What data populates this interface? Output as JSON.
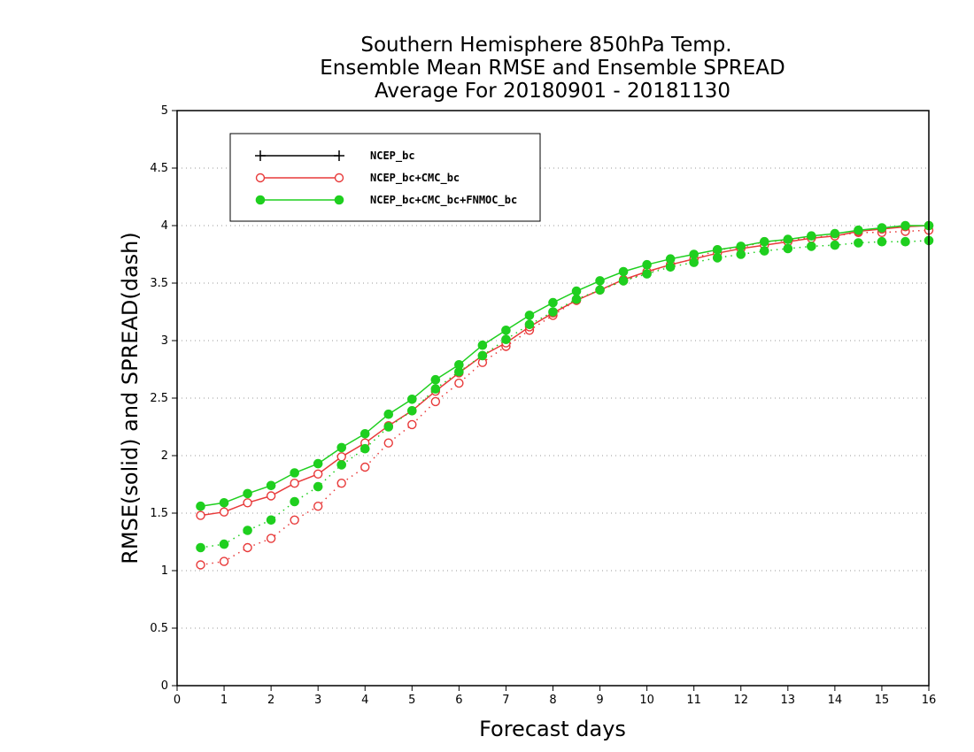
{
  "chart_data": {
    "type": "line",
    "title_lines": [
      "Southern Hemisphere 850hPa Temp.",
      "Ensemble Mean RMSE and Ensemble SPREAD",
      "Average For 20180901 - 20181130"
    ],
    "xlabel": "Forecast days",
    "ylabel": "RMSE(solid) and SPREAD(dash)",
    "xlim": [
      0,
      16
    ],
    "ylim": [
      0,
      5
    ],
    "xticks": [
      "0",
      "1",
      "2",
      "3",
      "4",
      "5",
      "6",
      "7",
      "8",
      "9",
      "10",
      "11",
      "12",
      "13",
      "14",
      "15",
      "16"
    ],
    "yticks": [
      "0",
      "0.5",
      "1",
      "1.5",
      "2",
      "2.5",
      "3",
      "3.5",
      "4",
      "4.5",
      "5"
    ],
    "grid": "horizontal dotted",
    "legend_position": "top-left",
    "x": [
      0.5,
      1,
      1.5,
      2,
      2.5,
      3,
      3.5,
      4,
      4.5,
      5,
      5.5,
      6,
      6.5,
      7,
      7.5,
      8,
      8.5,
      9,
      9.5,
      10,
      10.5,
      11,
      11.5,
      12,
      12.5,
      13,
      13.5,
      14,
      14.5,
      15,
      15.5,
      16
    ],
    "series": [
      {
        "name": "NCEP_bc",
        "color": "#000000",
        "marker": "plus",
        "rmse": [],
        "spread": []
      },
      {
        "name": "NCEP_bc+CMC_bc",
        "color": "#e83a3a",
        "marker": "open-circle",
        "rmse": [
          1.48,
          1.51,
          1.59,
          1.65,
          1.76,
          1.84,
          1.99,
          2.11,
          2.26,
          2.39,
          2.56,
          2.72,
          2.87,
          2.98,
          3.12,
          3.24,
          3.35,
          3.44,
          3.53,
          3.6,
          3.66,
          3.71,
          3.76,
          3.8,
          3.83,
          3.86,
          3.89,
          3.91,
          3.95,
          3.97,
          3.99,
          4.0
        ],
        "spread": [
          1.05,
          1.08,
          1.2,
          1.28,
          1.44,
          1.56,
          1.76,
          1.9,
          2.11,
          2.27,
          2.47,
          2.63,
          2.81,
          2.95,
          3.09,
          3.22,
          3.35,
          3.44,
          3.52,
          3.59,
          3.66,
          3.71,
          3.79,
          3.81,
          3.86,
          3.87,
          3.9,
          3.91,
          3.94,
          3.94,
          3.95,
          3.96
        ]
      },
      {
        "name": "NCEP_bc+CMC_bc+FNMOC_bc",
        "color": "#1fcf1f",
        "marker": "filled-circle",
        "rmse": [
          1.56,
          1.59,
          1.67,
          1.74,
          1.85,
          1.93,
          2.07,
          2.19,
          2.36,
          2.49,
          2.66,
          2.79,
          2.96,
          3.09,
          3.22,
          3.33,
          3.43,
          3.52,
          3.6,
          3.66,
          3.71,
          3.75,
          3.79,
          3.82,
          3.86,
          3.88,
          3.91,
          3.93,
          3.96,
          3.98,
          4.0,
          4.0
        ],
        "spread": [
          1.2,
          1.23,
          1.35,
          1.44,
          1.6,
          1.73,
          1.92,
          2.06,
          2.25,
          2.39,
          2.58,
          2.73,
          2.87,
          3.01,
          3.14,
          3.25,
          3.36,
          3.44,
          3.52,
          3.58,
          3.64,
          3.68,
          3.72,
          3.75,
          3.78,
          3.8,
          3.82,
          3.83,
          3.85,
          3.86,
          3.86,
          3.87
        ]
      }
    ]
  }
}
